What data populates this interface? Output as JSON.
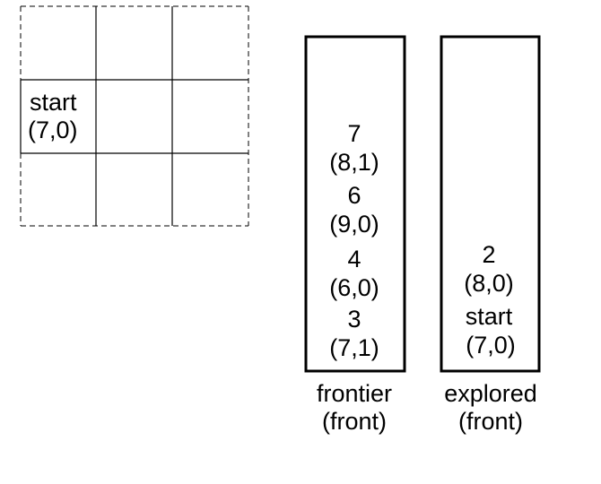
{
  "grid": {
    "rows": 3,
    "cols": 3,
    "cells": [
      {
        "row": 1,
        "col": 0,
        "label": "start",
        "coord": "(7,0)"
      }
    ]
  },
  "frontier": {
    "title": "frontier",
    "subtitle": "(front)",
    "items": [
      {
        "label": "7",
        "coord": "(8,1)"
      },
      {
        "label": "6",
        "coord": "(9,0)"
      },
      {
        "label": "4",
        "coord": "(6,0)"
      },
      {
        "label": "3",
        "coord": "(7,1)"
      }
    ]
  },
  "explored": {
    "title": "explored",
    "subtitle": "(front)",
    "items": [
      {
        "label": "2",
        "coord": "(8,0)"
      },
      {
        "label": "start",
        "coord": "(7,0)"
      }
    ]
  }
}
